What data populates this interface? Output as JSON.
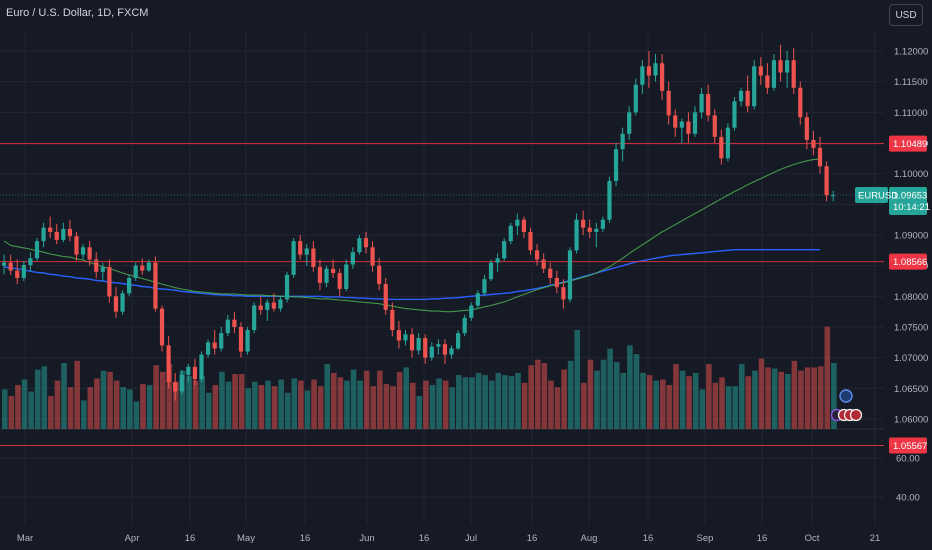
{
  "header": {
    "title": "Euro / U.S. Dollar, 1D, FXCM",
    "currency_button": "USD"
  },
  "colors": {
    "background": "#161a25",
    "grid": "#232632",
    "up": "#26a69a",
    "down": "#ef5350",
    "ma_fast": "#4caf50",
    "ma_slow": "#2962ff",
    "resistance": "#f23645"
  },
  "chart_data": {
    "type": "candlestick",
    "symbol": "EURUSD",
    "price_axis": {
      "ylim": [
        1.0535,
        1.122
      ],
      "ticks": [
        "1.12000",
        "1.11500",
        "1.11000",
        "1.10500",
        "1.10000",
        "1.09500",
        "1.09000",
        "1.08500",
        "1.08000",
        "1.07500",
        "1.07000",
        "1.06500",
        "1.06000"
      ]
    },
    "indicator_axis": {
      "ylim": [
        30,
        90
      ],
      "ticks": [
        "60.00",
        "40.00"
      ]
    },
    "x_axis": {
      "labels": [
        "Mar",
        "Apr",
        "16",
        "May",
        "16",
        "Jun",
        "16",
        "Jul",
        "16",
        "Aug",
        "16",
        "Sep",
        "16",
        "Oct",
        "21"
      ]
    },
    "last_price": {
      "label": "EURUSD",
      "value": "1.09653",
      "countdown": "10:14:21"
    },
    "levels": [
      {
        "label": "1.10489",
        "value": 1.10489
      },
      {
        "label": "1.08566",
        "value": 1.08566
      },
      {
        "label": "1.05567",
        "value": 1.05567
      }
    ],
    "ohlc": [
      [
        1.085,
        1.0868,
        1.0836,
        1.0855
      ],
      [
        1.0855,
        1.0868,
        1.0835,
        1.0842
      ],
      [
        1.0842,
        1.086,
        1.082,
        1.083
      ],
      [
        1.083,
        1.0858,
        1.0825,
        1.0851
      ],
      [
        1.0851,
        1.0872,
        1.084,
        1.0862
      ],
      [
        1.0862,
        1.0895,
        1.0858,
        1.089
      ],
      [
        1.089,
        1.092,
        1.088,
        1.0912
      ],
      [
        1.0912,
        1.093,
        1.0895,
        1.0905
      ],
      [
        1.0905,
        1.0918,
        1.0885,
        1.0892
      ],
      [
        1.0892,
        1.092,
        1.0888,
        1.091
      ],
      [
        1.091,
        1.0925,
        1.089,
        1.0898
      ],
      [
        1.0898,
        1.0905,
        1.0858,
        1.0868
      ],
      [
        1.0868,
        1.0885,
        1.086,
        1.088
      ],
      [
        1.088,
        1.089,
        1.085,
        1.086
      ],
      [
        1.086,
        1.0872,
        1.083,
        1.084
      ],
      [
        1.084,
        1.0855,
        1.0825,
        1.0848
      ],
      [
        1.0848,
        1.086,
        1.079,
        1.08
      ],
      [
        1.08,
        1.0815,
        1.0765,
        1.0775
      ],
      [
        1.0775,
        1.081,
        1.077,
        1.0805
      ],
      [
        1.0805,
        1.0835,
        1.08,
        1.083
      ],
      [
        1.083,
        1.0855,
        1.0825,
        1.085
      ],
      [
        1.085,
        1.0862,
        1.0835,
        1.0842
      ],
      [
        1.0842,
        1.086,
        1.084,
        1.0855
      ],
      [
        1.0855,
        1.0865,
        1.0775,
        1.078
      ],
      [
        1.078,
        1.0785,
        1.071,
        1.072
      ],
      [
        1.072,
        1.0735,
        1.065,
        1.066
      ],
      [
        1.066,
        1.0675,
        1.063,
        1.0645
      ],
      [
        1.0645,
        1.068,
        1.064,
        1.0672
      ],
      [
        1.0672,
        1.069,
        1.066,
        1.0685
      ],
      [
        1.0685,
        1.0698,
        1.0655,
        1.0665
      ],
      [
        1.0665,
        1.071,
        1.066,
        1.0705
      ],
      [
        1.0705,
        1.073,
        1.07,
        1.0725
      ],
      [
        1.0725,
        1.0745,
        1.0705,
        1.0715
      ],
      [
        1.0715,
        1.075,
        1.071,
        1.074
      ],
      [
        1.074,
        1.077,
        1.0735,
        1.0762
      ],
      [
        1.0762,
        1.0775,
        1.074,
        1.075
      ],
      [
        1.075,
        1.0758,
        1.07,
        1.071
      ],
      [
        1.071,
        1.075,
        1.0705,
        1.0745
      ],
      [
        1.0745,
        1.079,
        1.074,
        1.0785
      ],
      [
        1.0785,
        1.08,
        1.077,
        1.0778
      ],
      [
        1.0778,
        1.0795,
        1.076,
        1.079
      ],
      [
        1.079,
        1.0805,
        1.0775,
        1.078
      ],
      [
        1.078,
        1.08,
        1.0775,
        1.0795
      ],
      [
        1.0795,
        1.084,
        1.079,
        1.0835
      ],
      [
        1.0835,
        1.0895,
        1.083,
        1.089
      ],
      [
        1.089,
        1.09,
        1.086,
        1.0868
      ],
      [
        1.0868,
        1.0885,
        1.085,
        1.0878
      ],
      [
        1.0878,
        1.089,
        1.084,
        1.0848
      ],
      [
        1.0848,
        1.086,
        1.081,
        1.0822
      ],
      [
        1.0822,
        1.085,
        1.0815,
        1.0845
      ],
      [
        1.0845,
        1.086,
        1.083,
        1.0838
      ],
      [
        1.0838,
        1.0845,
        1.08,
        1.0812
      ],
      [
        1.0812,
        1.086,
        1.0808,
        1.0852
      ],
      [
        1.0852,
        1.088,
        1.0845,
        1.0872
      ],
      [
        1.0872,
        1.09,
        1.0868,
        1.0895
      ],
      [
        1.0895,
        1.0905,
        1.087,
        1.088
      ],
      [
        1.088,
        1.089,
        1.084,
        1.085
      ],
      [
        1.085,
        1.0862,
        1.081,
        1.082
      ],
      [
        1.082,
        1.083,
        1.077,
        1.0778
      ],
      [
        1.0778,
        1.079,
        1.0735,
        1.0745
      ],
      [
        1.0745,
        1.076,
        1.0715,
        1.0728
      ],
      [
        1.0728,
        1.0745,
        1.072,
        1.0738
      ],
      [
        1.0738,
        1.0748,
        1.07,
        1.0712
      ],
      [
        1.0712,
        1.074,
        1.0705,
        1.0732
      ],
      [
        1.0732,
        1.0738,
        1.069,
        1.07
      ],
      [
        1.07,
        1.0725,
        1.0695,
        1.0718
      ],
      [
        1.0718,
        1.073,
        1.0705,
        1.0722
      ],
      [
        1.0722,
        1.073,
        1.069,
        1.0705
      ],
      [
        1.0705,
        1.072,
        1.0698,
        1.0715
      ],
      [
        1.0715,
        1.0745,
        1.0712,
        1.074
      ],
      [
        1.074,
        1.077,
        1.0735,
        1.0765
      ],
      [
        1.0765,
        1.079,
        1.076,
        1.0785
      ],
      [
        1.0785,
        1.081,
        1.078,
        1.0805
      ],
      [
        1.0805,
        1.0835,
        1.08,
        1.0828
      ],
      [
        1.0828,
        1.086,
        1.0825,
        1.0855
      ],
      [
        1.0855,
        1.087,
        1.084,
        1.0862
      ],
      [
        1.0862,
        1.0895,
        1.0858,
        1.089
      ],
      [
        1.089,
        1.092,
        1.0885,
        1.0915
      ],
      [
        1.0915,
        1.0935,
        1.09,
        1.0925
      ],
      [
        1.0925,
        1.093,
        1.0895,
        1.0905
      ],
      [
        1.0905,
        1.0912,
        1.0868,
        1.0875
      ],
      [
        1.0875,
        1.0885,
        1.085,
        1.086
      ],
      [
        1.086,
        1.087,
        1.0838,
        1.0845
      ],
      [
        1.0845,
        1.0855,
        1.082,
        1.083
      ],
      [
        1.083,
        1.0842,
        1.0805,
        1.0815
      ],
      [
        1.0815,
        1.0828,
        1.078,
        1.0795
      ],
      [
        1.0795,
        1.088,
        1.079,
        1.0875
      ],
      [
        1.0875,
        1.0935,
        1.087,
        1.0925
      ],
      [
        1.0925,
        1.094,
        1.09,
        1.0912
      ],
      [
        1.0912,
        1.0925,
        1.0895,
        1.0905
      ],
      [
        1.0905,
        1.092,
        1.088,
        1.091
      ],
      [
        1.091,
        1.093,
        1.0905,
        1.0925
      ],
      [
        1.0925,
        1.0995,
        1.092,
        1.0988
      ],
      [
        1.0988,
        1.105,
        1.098,
        1.104
      ],
      [
        1.104,
        1.1075,
        1.102,
        1.1065
      ],
      [
        1.1065,
        1.111,
        1.1055,
        1.11
      ],
      [
        1.11,
        1.1155,
        1.1095,
        1.1145
      ],
      [
        1.1145,
        1.1185,
        1.113,
        1.1175
      ],
      [
        1.1175,
        1.12,
        1.114,
        1.116
      ],
      [
        1.116,
        1.1195,
        1.115,
        1.118
      ],
      [
        1.118,
        1.1195,
        1.112,
        1.1135
      ],
      [
        1.1135,
        1.115,
        1.108,
        1.1095
      ],
      [
        1.1095,
        1.1105,
        1.106,
        1.1075
      ],
      [
        1.1075,
        1.109,
        1.105,
        1.1085
      ],
      [
        1.1085,
        1.11,
        1.105,
        1.1065
      ],
      [
        1.1065,
        1.111,
        1.106,
        1.11
      ],
      [
        1.11,
        1.114,
        1.109,
        1.113
      ],
      [
        1.113,
        1.1145,
        1.1085,
        1.1095
      ],
      [
        1.1095,
        1.1105,
        1.105,
        1.106
      ],
      [
        1.106,
        1.1072,
        1.1015,
        1.1025
      ],
      [
        1.1025,
        1.1082,
        1.102,
        1.1075
      ],
      [
        1.1075,
        1.1125,
        1.107,
        1.1118
      ],
      [
        1.1118,
        1.114,
        1.111,
        1.1135
      ],
      [
        1.1135,
        1.116,
        1.11,
        1.111
      ],
      [
        1.111,
        1.1185,
        1.1105,
        1.1175
      ],
      [
        1.1175,
        1.119,
        1.1145,
        1.116
      ],
      [
        1.116,
        1.118,
        1.113,
        1.114
      ],
      [
        1.114,
        1.1195,
        1.1135,
        1.1185
      ],
      [
        1.1185,
        1.121,
        1.115,
        1.1165
      ],
      [
        1.1165,
        1.12,
        1.114,
        1.1185
      ],
      [
        1.1185,
        1.1205,
        1.113,
        1.114
      ],
      [
        1.114,
        1.115,
        1.108,
        1.1092
      ],
      [
        1.1092,
        1.11,
        1.104,
        1.1055
      ],
      [
        1.1055,
        1.107,
        1.103,
        1.1042
      ],
      [
        1.1042,
        1.106,
        1.1,
        1.1012
      ],
      [
        1.1012,
        1.102,
        1.0955,
        1.0965
      ],
      [
        1.0965,
        1.0972,
        1.0955,
        1.0965
      ]
    ],
    "volume": [
      36,
      30,
      40,
      45,
      34,
      54,
      57,
      30,
      44,
      60,
      38,
      62,
      26,
      38,
      46,
      53,
      52,
      44,
      38,
      36,
      25,
      41,
      40,
      58,
      52,
      59,
      43,
      53,
      48,
      44,
      48,
      33,
      40,
      52,
      43,
      50,
      50,
      37,
      43,
      40,
      44,
      39,
      45,
      33,
      46,
      44,
      35,
      45,
      39,
      59,
      51,
      47,
      44,
      54,
      44,
      53,
      39,
      53,
      41,
      39,
      52,
      56,
      42,
      30,
      44,
      40,
      46,
      44,
      38,
      49,
      47,
      47,
      51,
      49,
      44,
      51,
      49,
      48,
      51,
      42,
      58,
      63,
      60,
      44,
      38,
      54,
      62,
      90,
      42,
      63,
      53,
      63,
      73,
      61,
      51,
      76,
      68,
      51,
      49,
      44,
      45,
      40,
      59,
      53,
      48,
      51,
      36,
      59,
      42,
      47,
      39,
      39,
      59,
      48,
      53,
      64,
      56,
      55,
      52,
      50,
      62,
      53,
      56,
      56,
      57,
      93,
      60
    ],
    "ma_fast": [
      1.089,
      1.0883,
      1.0881,
      1.0879,
      1.0877,
      1.0874,
      1.0872,
      1.0869,
      1.0867,
      1.0865,
      1.0864,
      1.0861,
      1.0859,
      1.0855,
      1.0852,
      1.0848,
      1.0845,
      1.0842,
      1.0838,
      1.0835,
      1.0832,
      1.0829,
      1.0826,
      1.0823,
      1.082,
      1.0817,
      1.0814,
      1.0812,
      1.081,
      1.0808,
      1.0807,
      1.0806,
      1.0805,
      1.0804,
      1.0804,
      1.0804,
      1.0803,
      1.0802,
      1.0802,
      1.0802,
      1.0801,
      1.0801,
      1.08,
      1.08,
      1.0799,
      1.0799,
      1.0798,
      1.0797,
      1.0796,
      1.0796,
      1.0795,
      1.0794,
      1.0793,
      1.0792,
      1.0791,
      1.079,
      1.0789,
      1.0788,
      1.0786,
      1.0784,
      1.0782,
      1.078,
      1.0779,
      1.0778,
      1.0777,
      1.0776,
      1.0776,
      1.0775,
      1.0775,
      1.0776,
      1.0777,
      1.0778,
      1.078,
      1.0783,
      1.0785,
      1.0788,
      1.0791,
      1.0795,
      1.0799,
      1.0803,
      1.0807,
      1.0811,
      1.0814,
      1.0817,
      1.082,
      1.0822,
      1.0825,
      1.0828,
      1.0831,
      1.0834,
      1.0838,
      1.0843,
      1.0848,
      1.0855,
      1.0862,
      1.087,
      1.0877,
      1.0884,
      1.0891,
      1.0898,
      1.0905,
      1.0911,
      1.0917,
      1.0923,
      1.0929,
      1.0935,
      1.0941,
      1.0947,
      1.0953,
      1.0959,
      1.0965,
      1.0971,
      1.0976,
      1.0982,
      1.0987,
      1.0992,
      1.0997,
      1.1002,
      1.1007,
      1.1011,
      1.1015,
      1.1018,
      1.1021,
      1.1023,
      1.1024
    ],
    "ma_slow": [
      1.0848,
      1.0846,
      1.0845,
      1.0843,
      1.0841,
      1.0839,
      1.0838,
      1.0836,
      1.0835,
      1.0833,
      1.0832,
      1.083,
      1.0829,
      1.0828,
      1.0826,
      1.0825,
      1.0823,
      1.0822,
      1.0821,
      1.0819,
      1.0818,
      1.0816,
      1.0815,
      1.0813,
      1.0812,
      1.0811,
      1.081,
      1.0808,
      1.0807,
      1.0806,
      1.0805,
      1.0804,
      1.0803,
      1.0802,
      1.0802,
      1.0801,
      1.0801,
      1.08,
      1.08,
      1.08,
      1.08,
      1.08,
      1.08,
      1.08,
      1.08,
      1.08,
      1.08,
      1.08,
      1.08,
      1.0799,
      1.0799,
      1.0799,
      1.0798,
      1.0798,
      1.0797,
      1.0797,
      1.0796,
      1.0796,
      1.0795,
      1.0795,
      1.0795,
      1.0795,
      1.0795,
      1.0795,
      1.0795,
      1.0796,
      1.0796,
      1.0797,
      1.0797,
      1.0798,
      1.0799,
      1.08,
      1.0801,
      1.0802,
      1.0803,
      1.0804,
      1.0805,
      1.0806,
      1.0808,
      1.0809,
      1.0811,
      1.0813,
      1.0815,
      1.0818,
      1.082,
      1.0823,
      1.0826,
      1.0829,
      1.0832,
      1.0835,
      1.0838,
      1.0841,
      1.0844,
      1.0847,
      1.085,
      1.0853,
      1.0856,
      1.0858,
      1.086,
      1.0862,
      1.0864,
      1.0866,
      1.0867,
      1.0868,
      1.0869,
      1.087,
      1.0871,
      1.0872,
      1.0873,
      1.0874,
      1.0875,
      1.0876,
      1.0876,
      1.0876,
      1.0876,
      1.0876,
      1.0876,
      1.0876,
      1.0876,
      1.0876,
      1.0876,
      1.0876,
      1.0876,
      1.0876,
      1.0876
    ]
  }
}
